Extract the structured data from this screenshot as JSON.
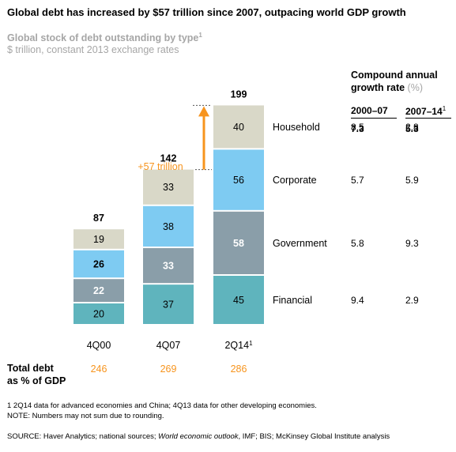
{
  "title": "Global debt has increased by $57 trillion since 2007, outpacing world GDP growth",
  "subtitle": "Global stock of debt outstanding by type",
  "subtitle_note": "1",
  "units": "$ trillion, constant 2013 exchange rates",
  "growth_header": {
    "line1": "Compound annual",
    "line2": "growth rate",
    "unit": "(%)",
    "periods": [
      {
        "label": "2000–07",
        "note": ""
      },
      {
        "label": "2007–14",
        "note": "1"
      }
    ]
  },
  "growth_totals": [
    "7.3",
    "5.3"
  ],
  "increase_label": "+57 trillion",
  "total_debt_gdp_label": "Total debt as % of GDP",
  "total_debt_gdp_line1": "Total debt",
  "total_debt_gdp_line2": "as % of GDP",
  "colors": {
    "household": "#d9d8c8",
    "corporate": "#7ecbf2",
    "government": "#8a9ea9",
    "financial": "#5fb4bd",
    "arrow": "#f7941d",
    "gdp_pct": "#f7941d",
    "muted": "#a6a6a6"
  },
  "chart_data": {
    "type": "bar",
    "stacked": true,
    "categories": [
      "4Q00",
      "4Q07",
      "2Q14"
    ],
    "category_notes": [
      "",
      "",
      "1"
    ],
    "totals": [
      87,
      142,
      199
    ],
    "series": [
      {
        "name": "Financial",
        "values": [
          20,
          37,
          45
        ],
        "growth": [
          "9.4",
          "2.9"
        ]
      },
      {
        "name": "Government",
        "values": [
          22,
          33,
          58
        ],
        "growth": [
          "5.8",
          "9.3"
        ]
      },
      {
        "name": "Corporate",
        "values": [
          26,
          38,
          56
        ],
        "growth": [
          "5.7",
          "5.9"
        ]
      },
      {
        "name": "Household",
        "values": [
          19,
          33,
          40
        ],
        "growth": [
          "8.5",
          "2.8"
        ]
      }
    ],
    "debt_pct_gdp": [
      "246",
      "269",
      "286"
    ]
  },
  "footnotes": {
    "note1": "1  2Q14 data for advanced economies and China; 4Q13 data for other developing economies.",
    "note": "NOTE: Numbers may not sum due to rounding.",
    "source_prefix": "SOURCE:  Haver Analytics; national sources; ",
    "source_italic": "World economic outlook",
    "source_suffix": ", IMF; BIS; McKinsey Global Institute analysis"
  }
}
